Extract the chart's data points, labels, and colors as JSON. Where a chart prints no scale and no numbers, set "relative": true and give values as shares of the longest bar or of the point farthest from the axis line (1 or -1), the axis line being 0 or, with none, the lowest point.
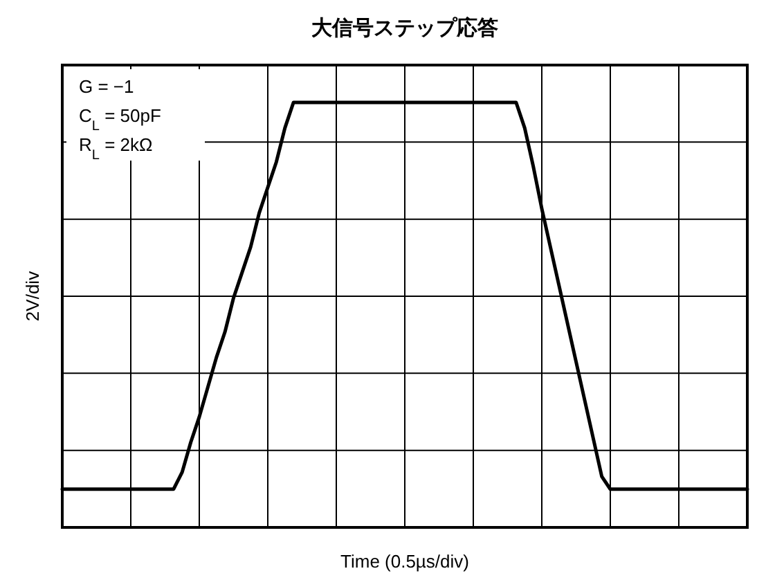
{
  "chart_data": {
    "type": "line",
    "title": "大信号ステップ応答",
    "xlabel": "Time (0.5µs/div)",
    "ylabel": "2V/div",
    "relative": true,
    "grid": true,
    "line_style": "solid",
    "annotations": [
      "G = −1",
      "C$_{L}$ = 50pF",
      "R$_{L}$ = 2kΩ"
    ],
    "categories": [
      null,
      null,
      null,
      null,
      null,
      null,
      null,
      null,
      null,
      null,
      null,
      null,
      null,
      null,
      null,
      null,
      null,
      null,
      null,
      null,
      null,
      null,
      null,
      null,
      null,
      null,
      null,
      null,
      null,
      null,
      null,
      null,
      null,
      null,
      null,
      null,
      null,
      null,
      null,
      null,
      null,
      null,
      null,
      null,
      null,
      null,
      null,
      null,
      null,
      null,
      null,
      null,
      null,
      null,
      null,
      null,
      null,
      null,
      null,
      null,
      null,
      null,
      null,
      null,
      null,
      null,
      null,
      null,
      null,
      null,
      null,
      null,
      null,
      null,
      null,
      null,
      null,
      null,
      null,
      null,
      null
    ],
    "series": [
      {
        "color": "#000000",
        "values": [
          0.09,
          0.09,
          0.09,
          0.09,
          0.09,
          0.09,
          0.09,
          0.09,
          0.09,
          0.09,
          0.09,
          0.09,
          0.09,
          0.09,
          0.13,
          0.2,
          0.26,
          0.33,
          0.4,
          0.46,
          0.54,
          0.6,
          0.66,
          0.74,
          0.8,
          0.86,
          0.94,
          1,
          1,
          1,
          1,
          1,
          1,
          1,
          1,
          1,
          1,
          1,
          1,
          1,
          1,
          1,
          1,
          1,
          1,
          1,
          1,
          1,
          1,
          1,
          1,
          1,
          1,
          1,
          0.94,
          0.85,
          0.75,
          0.66,
          0.57,
          0.48,
          0.39,
          0.3,
          0.21,
          0.12,
          0.09,
          0.09,
          0.09,
          0.09,
          0.09,
          0.09,
          0.09,
          0.09,
          0.09,
          0.09,
          0.09,
          0.09,
          0.09,
          0.09,
          0.09,
          0.09,
          0.09
        ]
      }
    ]
  }
}
